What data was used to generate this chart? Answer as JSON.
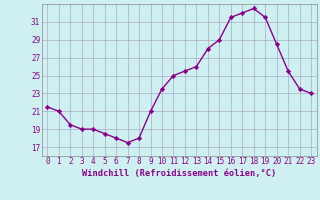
{
  "x": [
    0,
    1,
    2,
    3,
    4,
    5,
    6,
    7,
    8,
    9,
    10,
    11,
    12,
    13,
    14,
    15,
    16,
    17,
    18,
    19,
    20,
    21,
    22,
    23
  ],
  "y": [
    21.5,
    21.0,
    19.5,
    19.0,
    19.0,
    18.5,
    18.0,
    17.5,
    18.0,
    21.0,
    23.5,
    25.0,
    25.5,
    26.0,
    28.0,
    29.0,
    31.5,
    32.0,
    32.5,
    31.5,
    28.5,
    25.5,
    23.5,
    23.0
  ],
  "ylim": [
    16,
    33
  ],
  "yticks": [
    17,
    19,
    21,
    23,
    25,
    27,
    29,
    31
  ],
  "xlabel": "Windchill (Refroidissement éolien,°C)",
  "line_color": "#8B008B",
  "marker": "D",
  "bg_color": "#cef0f0",
  "grid_color": "#aaaacc",
  "tick_color": "#8B008B",
  "label_color": "#8B008B",
  "marker_size": 2.2,
  "line_width": 1.0,
  "tick_fontsize": 5.5,
  "xlabel_fontsize": 6.2
}
